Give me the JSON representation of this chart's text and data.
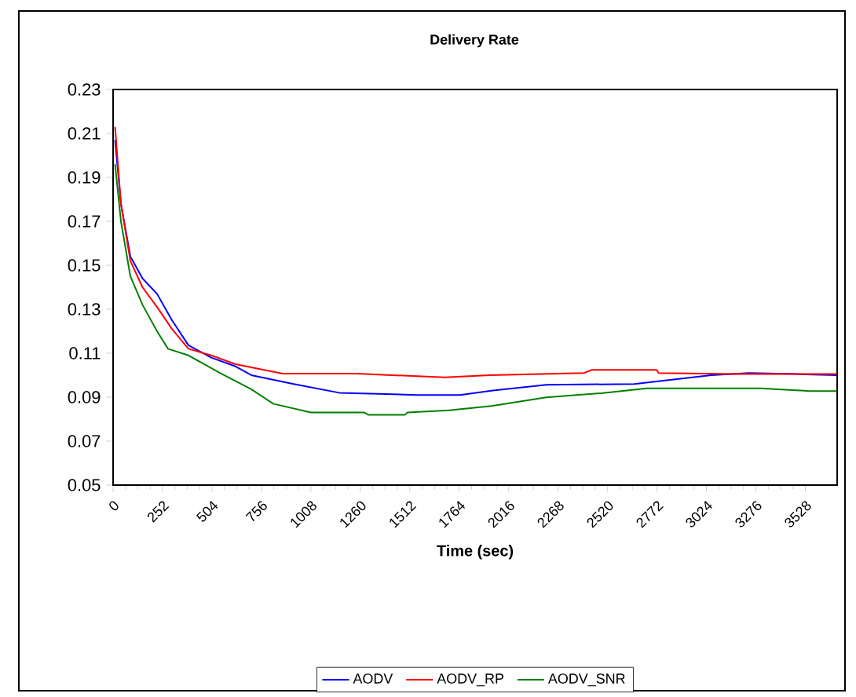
{
  "chart_data": {
    "type": "line",
    "title": "Delivery Rate",
    "xlabel": "Time (sec)",
    "xlim": [
      0,
      3690
    ],
    "xticks": [
      0,
      252,
      504,
      756,
      1008,
      1260,
      1512,
      1764,
      2016,
      2268,
      2520,
      2772,
      3024,
      3276,
      3528
    ],
    "ylim": [
      0.05,
      0.23
    ],
    "yticks": [
      0.05,
      0.07,
      0.09,
      0.11,
      0.13,
      0.15,
      0.17,
      0.19,
      0.21,
      0.23
    ],
    "grid": false,
    "legend": "bottom",
    "marker": "none",
    "line_style": "solid",
    "series": [
      {
        "name": "AODV",
        "color": "#0000ff",
        "x": [
          10,
          40,
          88,
          150,
          224,
          300,
          384,
          500,
          624,
          704,
          920,
          1152,
          1544,
          1768,
          1936,
          2208,
          2656,
          3048,
          3240,
          3480,
          3688
        ],
        "values": [
          0.207,
          0.178,
          0.154,
          0.144,
          0.137,
          0.125,
          0.1136,
          0.108,
          0.104,
          0.1,
          0.096,
          0.092,
          0.091,
          0.091,
          0.093,
          0.0956,
          0.096,
          0.1,
          0.101,
          0.1005,
          0.1
        ]
      },
      {
        "name": "AODV_RP",
        "color": "#ff0000",
        "x": [
          10,
          40,
          88,
          150,
          224,
          300,
          384,
          500,
          624,
          864,
          1240,
          1690,
          1920,
          2400,
          2440,
          2770,
          2780,
          3170,
          3688
        ],
        "values": [
          0.213,
          0.178,
          0.152,
          0.14,
          0.131,
          0.121,
          0.112,
          0.109,
          0.105,
          0.1007,
          0.1007,
          0.099,
          0.1,
          0.101,
          0.1024,
          0.1024,
          0.101,
          0.1005,
          0.1005
        ]
      },
      {
        "name": "AODV_SNR",
        "color": "#008000",
        "x": [
          10,
          40,
          88,
          150,
          224,
          280,
          384,
          544,
          704,
          816,
          1008,
          1280,
          1300,
          1488,
          1500,
          1712,
          1928,
          2208,
          2488,
          2720,
          3300,
          3550,
          3688
        ],
        "values": [
          0.196,
          0.17,
          0.145,
          0.132,
          0.12,
          0.112,
          0.109,
          0.101,
          0.0936,
          0.087,
          0.083,
          0.083,
          0.082,
          0.082,
          0.083,
          0.084,
          0.086,
          0.0899,
          0.0918,
          0.094,
          0.094,
          0.0928,
          0.0928
        ]
      }
    ]
  }
}
